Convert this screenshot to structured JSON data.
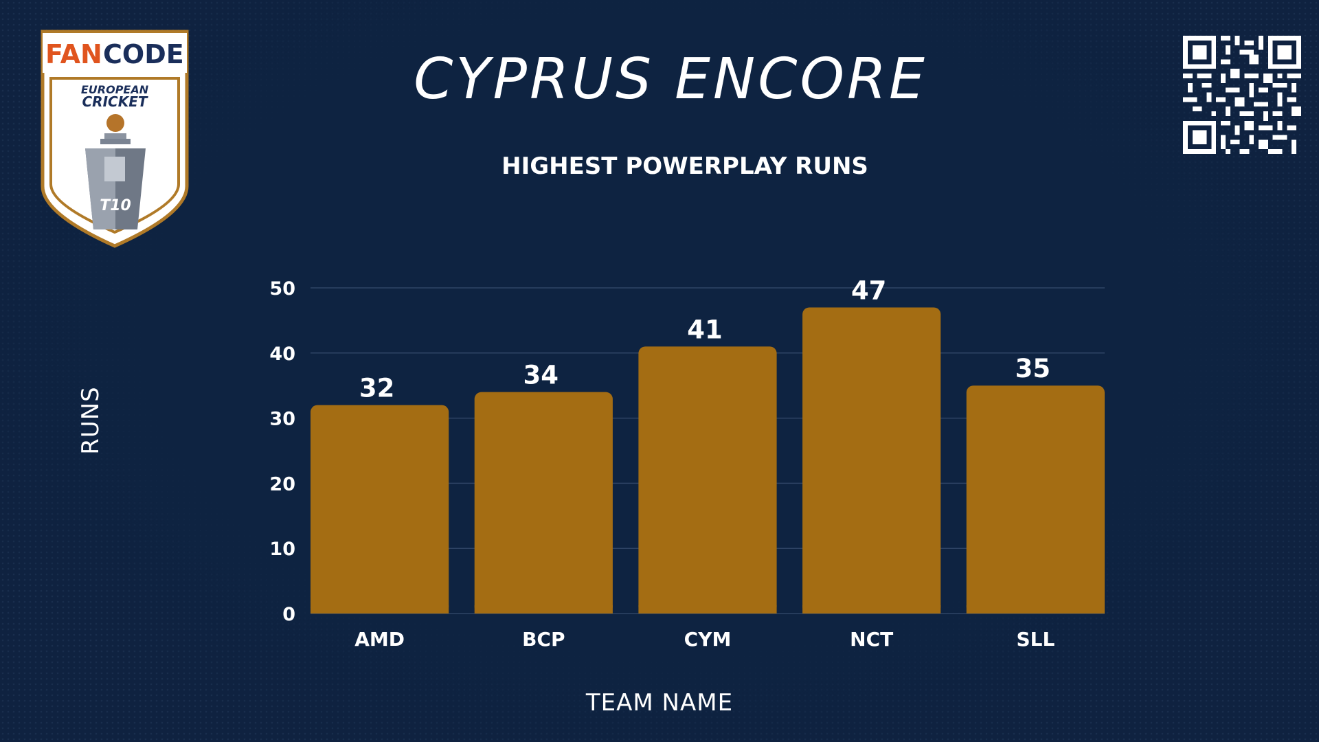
{
  "header": {
    "title": "CYPRUS ENCORE",
    "logo_text": [
      "FANCODE",
      "EUROPEAN",
      "CRICKET",
      "T10"
    ]
  },
  "colors": {
    "background": "#0e2341",
    "bar": "#a46d13",
    "gridline": "#2f4466",
    "logo_orange": "#e0541e",
    "logo_navy": "#1a2e5a",
    "logo_gold": "#b07a28"
  },
  "icons": [
    "fancode-european-cricket-t10-logo",
    "qr-code"
  ],
  "chart_data": {
    "type": "bar",
    "title": "HIGHEST POWERPLAY RUNS",
    "xlabel": "TEAM NAME",
    "ylabel": "RUNS",
    "categories": [
      "AMD",
      "BCP",
      "CYM",
      "NCT",
      "SLL"
    ],
    "values": [
      32,
      34,
      41,
      47,
      35
    ],
    "ylim": [
      0,
      50
    ],
    "yticks": [
      0,
      10,
      20,
      30,
      40,
      50
    ],
    "grid": true,
    "legend": "none"
  }
}
